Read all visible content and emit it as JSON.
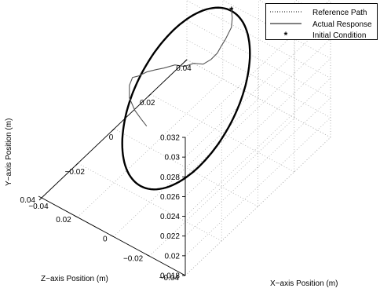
{
  "chart_data": {
    "type": "line3d",
    "title": "",
    "xlabel": "X−axis Position (m)",
    "ylabel": "Y−axis Position (m)",
    "zlabel": "Z−axis Position (m)",
    "xlim": [
      -0.04,
      0.04
    ],
    "ylim": [
      0.018,
      0.032
    ],
    "zlim": [
      -0.04,
      0.04
    ],
    "x_ticks": [
      "−0.04",
      "−0.02",
      "0",
      "0.02",
      "0.04"
    ],
    "y_ticks": [
      "0.018",
      "0.02",
      "0.022",
      "0.024",
      "0.026",
      "0.028",
      "0.03",
      "0.032"
    ],
    "z_ticks": [
      "−0.04",
      "−0.02",
      "0",
      "0.02",
      "0.04"
    ],
    "grid": true,
    "box": true,
    "legend_position": "top-right",
    "series": [
      {
        "name": "Reference Path",
        "style": "dotted",
        "color": "#000000",
        "values": []
      },
      {
        "name": "Actual Response",
        "style": "solid",
        "color": "#000000",
        "note_shape": "tracking ellipse in tilted plane plus transient from initial condition",
        "trajectory": {
          "center": [
            0.0,
            0.025,
            0.0
          ],
          "radius_x": 0.025,
          "radius_z": 0.025,
          "y_amplitude": 0.0045
        }
      },
      {
        "name": "Initial Condition",
        "style": "marker",
        "marker": "*",
        "color": "#000000",
        "point": [
          0.025,
          0.0296,
          0.0
        ]
      }
    ]
  }
}
